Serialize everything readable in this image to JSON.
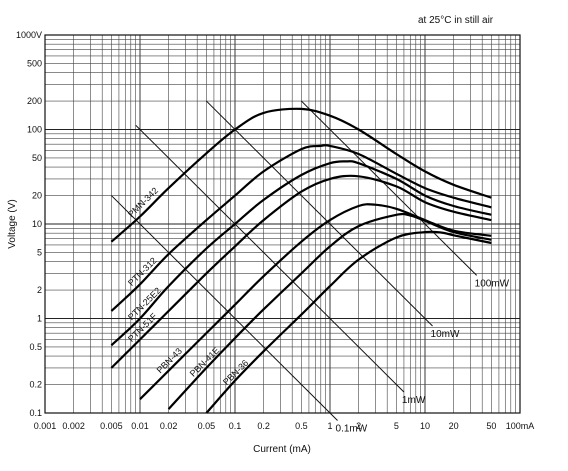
{
  "chart_data": {
    "type": "line",
    "annotation": "at 25°C in still air",
    "xlabel": "Current (mA)",
    "ylabel": "Voltage (V)",
    "xscale": "log",
    "yscale": "log",
    "xlim": [
      0.001,
      100
    ],
    "ylim": [
      0.1,
      1000
    ],
    "grid": true,
    "x_tick_labels": [
      {
        "v": 0.001,
        "t": "0.001"
      },
      {
        "v": 0.002,
        "t": "0.002"
      },
      {
        "v": 0.005,
        "t": "0.005"
      },
      {
        "v": 0.01,
        "t": "0.01"
      },
      {
        "v": 0.02,
        "t": "0.02"
      },
      {
        "v": 0.05,
        "t": "0.05"
      },
      {
        "v": 0.1,
        "t": "0.1"
      },
      {
        "v": 0.2,
        "t": "0.2"
      },
      {
        "v": 0.5,
        "t": "0.5"
      },
      {
        "v": 1,
        "t": "1"
      },
      {
        "v": 2,
        "t": "2"
      },
      {
        "v": 5,
        "t": "5"
      },
      {
        "v": 10,
        "t": "10"
      },
      {
        "v": 20,
        "t": "20"
      },
      {
        "v": 50,
        "t": "50"
      },
      {
        "v": 100,
        "t": "100mA"
      }
    ],
    "y_tick_labels": [
      {
        "v": 0.1,
        "t": "0.1"
      },
      {
        "v": 0.2,
        "t": "0.2"
      },
      {
        "v": 0.5,
        "t": "0.5"
      },
      {
        "v": 1,
        "t": "1"
      },
      {
        "v": 2,
        "t": "2"
      },
      {
        "v": 5,
        "t": "5"
      },
      {
        "v": 10,
        "t": "10"
      },
      {
        "v": 20,
        "t": "20"
      },
      {
        "v": 50,
        "t": "50"
      },
      {
        "v": 100,
        "t": "100"
      },
      {
        "v": 200,
        "t": "200"
      },
      {
        "v": 500,
        "t": "500"
      },
      {
        "v": 1000,
        "t": "1000V"
      }
    ],
    "series": [
      {
        "name": "PMN-342",
        "points": [
          [
            0.005,
            6.5
          ],
          [
            0.01,
            12
          ],
          [
            0.02,
            24
          ],
          [
            0.05,
            56
          ],
          [
            0.1,
            100
          ],
          [
            0.2,
            150
          ],
          [
            0.5,
            165
          ],
          [
            1,
            140
          ],
          [
            2,
            100
          ],
          [
            5,
            55
          ],
          [
            10,
            36
          ],
          [
            20,
            26
          ],
          [
            50,
            19
          ]
        ]
      },
      {
        "name": "PTN-312",
        "points": [
          [
            0.005,
            1.2
          ],
          [
            0.01,
            2.3
          ],
          [
            0.02,
            4.8
          ],
          [
            0.05,
            11
          ],
          [
            0.1,
            20
          ],
          [
            0.2,
            36
          ],
          [
            0.5,
            62
          ],
          [
            0.8,
            67
          ],
          [
            1,
            67
          ],
          [
            2,
            55
          ],
          [
            5,
            34
          ],
          [
            10,
            24
          ],
          [
            20,
            19
          ],
          [
            50,
            15
          ]
        ]
      },
      {
        "name": "PTN-25E2",
        "points": [
          [
            0.005,
            0.52
          ],
          [
            0.01,
            1.0
          ],
          [
            0.02,
            2.2
          ],
          [
            0.05,
            5.5
          ],
          [
            0.1,
            10
          ],
          [
            0.2,
            18
          ],
          [
            0.5,
            33
          ],
          [
            1,
            44
          ],
          [
            1.5,
            46
          ],
          [
            2,
            44
          ],
          [
            5,
            30
          ],
          [
            10,
            20
          ],
          [
            20,
            15.5
          ],
          [
            50,
            12.5
          ]
        ]
      },
      {
        "name": "PTN-51F",
        "points": [
          [
            0.005,
            0.3
          ],
          [
            0.01,
            0.6
          ],
          [
            0.02,
            1.2
          ],
          [
            0.05,
            3.0
          ],
          [
            0.1,
            5.8
          ],
          [
            0.2,
            11
          ],
          [
            0.5,
            22
          ],
          [
            1,
            30
          ],
          [
            2,
            32
          ],
          [
            5,
            25
          ],
          [
            10,
            17
          ],
          [
            20,
            13.5
          ],
          [
            50,
            11
          ]
        ]
      },
      {
        "name": "PBN-43",
        "points": [
          [
            0.01,
            0.14
          ],
          [
            0.02,
            0.28
          ],
          [
            0.05,
            0.7
          ],
          [
            0.1,
            1.4
          ],
          [
            0.2,
            2.8
          ],
          [
            0.5,
            6.5
          ],
          [
            1,
            11
          ],
          [
            2,
            15.5
          ],
          [
            3,
            16
          ],
          [
            5,
            14.5
          ],
          [
            10,
            11
          ],
          [
            20,
            8.5
          ],
          [
            50,
            7.5
          ]
        ]
      },
      {
        "name": "PBN-41E",
        "points": [
          [
            0.02,
            0.11
          ],
          [
            0.05,
            0.3
          ],
          [
            0.1,
            0.62
          ],
          [
            0.2,
            1.25
          ],
          [
            0.5,
            3.0
          ],
          [
            1,
            5.8
          ],
          [
            2,
            9.5
          ],
          [
            5,
            12.5
          ],
          [
            7,
            12.3
          ],
          [
            10,
            10.8
          ],
          [
            20,
            8.2
          ],
          [
            50,
            6.8
          ]
        ]
      },
      {
        "name": "PBN-36",
        "points": [
          [
            0.05,
            0.1
          ],
          [
            0.1,
            0.22
          ],
          [
            0.2,
            0.45
          ],
          [
            0.5,
            1.1
          ],
          [
            1,
            2.2
          ],
          [
            2,
            4.2
          ],
          [
            5,
            7.2
          ],
          [
            10,
            8.2
          ],
          [
            15,
            8.1
          ],
          [
            20,
            7.6
          ],
          [
            50,
            6.3
          ]
        ]
      }
    ],
    "power_lines": [
      {
        "label": "0.1mW",
        "power_mW": 0.1,
        "x_range": [
          0.005,
          1.2
        ]
      },
      {
        "label": "1mW",
        "power_mW": 1,
        "x_range": [
          0.009,
          6
        ]
      },
      {
        "label": "10mW",
        "power_mW": 10,
        "x_range": [
          0.05,
          12
        ]
      },
      {
        "label": "100mW",
        "power_mW": 100,
        "x_range": [
          0.5,
          35
        ]
      }
    ]
  }
}
